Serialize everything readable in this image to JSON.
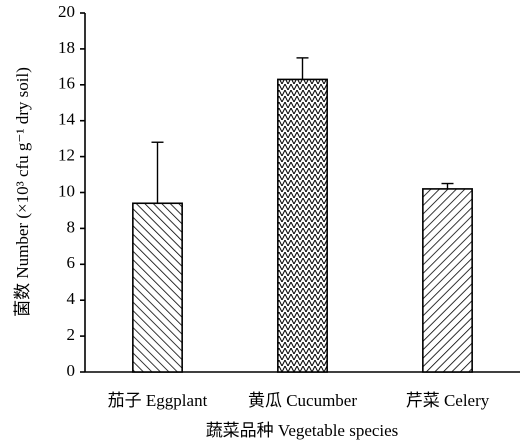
{
  "chart_data": {
    "type": "bar",
    "categories": [
      "茄子 Eggplant",
      "黄瓜 Cucumber",
      "芹菜 Celery"
    ],
    "values": [
      9.4,
      16.3,
      10.2
    ],
    "errors": [
      3.4,
      1.2,
      0.3
    ],
    "hatch": [
      "back-diagonal",
      "cross",
      "diagonal"
    ],
    "color": "#000000",
    "x_label": "蔬菜品种 Vegetable species",
    "y_label": "菌数 Number (×10³ cfu g⁻¹ dry soil)",
    "ylim": [
      0,
      20
    ],
    "yticks": [
      0,
      2,
      4,
      6,
      8,
      10,
      12,
      14,
      16,
      18,
      20
    ],
    "grid": false
  }
}
